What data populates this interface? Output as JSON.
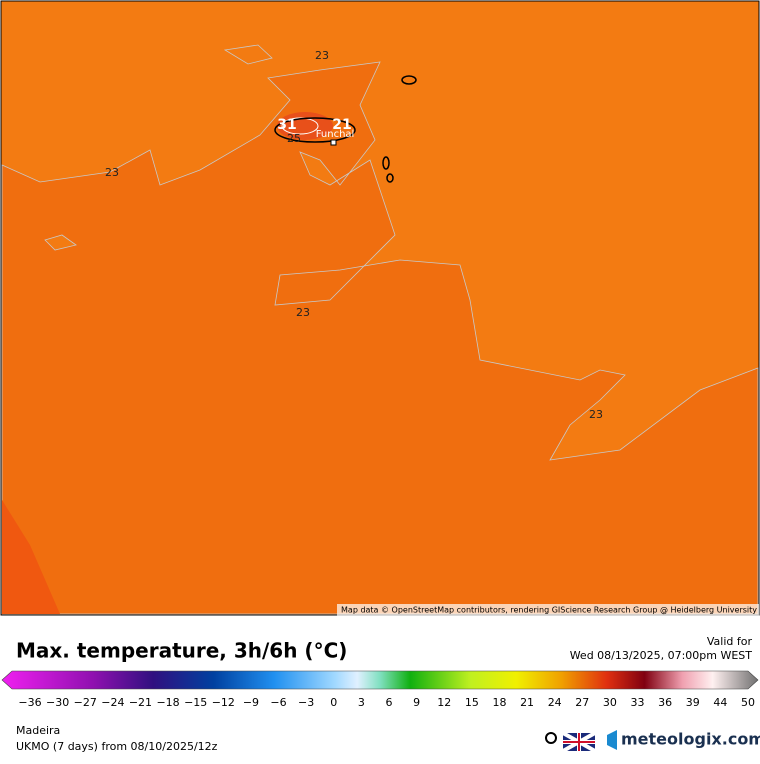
{
  "map": {
    "contour_labels": [
      "23",
      "23",
      "23",
      "23",
      "25",
      "31",
      "21"
    ],
    "place": "Funchal",
    "attribution": "Map data © OpenStreetMap contributors, rendering GIScience Research Group @ Heidelberg University"
  },
  "legend": {
    "title": "Max. temperature, 3h/6h (°C)",
    "valid_label": "Valid for",
    "valid_time": "Wed 08/13/2025, 07:00pm WEST",
    "ticks": [
      "−36",
      "−30",
      "−27",
      "−24",
      "−21",
      "−18",
      "−15",
      "−12",
      "−9",
      "−6",
      "−3",
      "0",
      "3",
      "6",
      "9",
      "12",
      "15",
      "18",
      "21",
      "24",
      "27",
      "30",
      "33",
      "36",
      "39",
      "44",
      "50"
    ]
  },
  "footer": {
    "region": "Madeira",
    "model": "UKMO (7 days) from 08/10/2025/12z",
    "brand": "meteologix.com"
  }
}
